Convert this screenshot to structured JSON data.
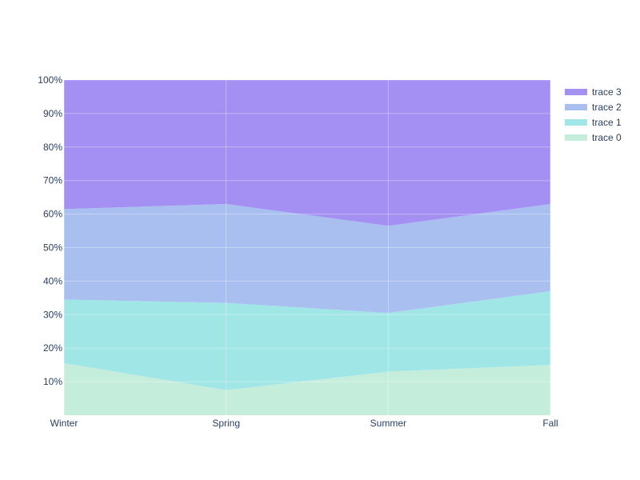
{
  "chart_data": {
    "type": "area",
    "stacked": true,
    "normalized_percent": true,
    "categories": [
      "Winter",
      "Spring",
      "Summer",
      "Fall"
    ],
    "series": [
      {
        "name": "trace 0",
        "values": [
          15.5,
          7.5,
          13.0,
          15.0
        ],
        "color": "#c5eddc"
      },
      {
        "name": "trace 1",
        "values": [
          19.0,
          26.0,
          17.5,
          22.0
        ],
        "color": "#a0e6e6"
      },
      {
        "name": "trace 2",
        "values": [
          27.0,
          29.5,
          26.0,
          26.0
        ],
        "color": "#a8bff0"
      },
      {
        "name": "trace 3",
        "values": [
          38.5,
          37.0,
          43.5,
          37.0
        ],
        "color": "#a48ff2"
      }
    ],
    "y_ticks": [
      "10%",
      "20%",
      "30%",
      "40%",
      "50%",
      "60%",
      "70%",
      "80%",
      "90%",
      "100%"
    ],
    "y_tick_values": [
      10,
      20,
      30,
      40,
      50,
      60,
      70,
      80,
      90,
      100
    ],
    "ylim": [
      0,
      100
    ],
    "grid": true,
    "legend_position": "top-right",
    "legend_order": "reversed",
    "title": "",
    "xlabel": "",
    "ylabel": ""
  }
}
